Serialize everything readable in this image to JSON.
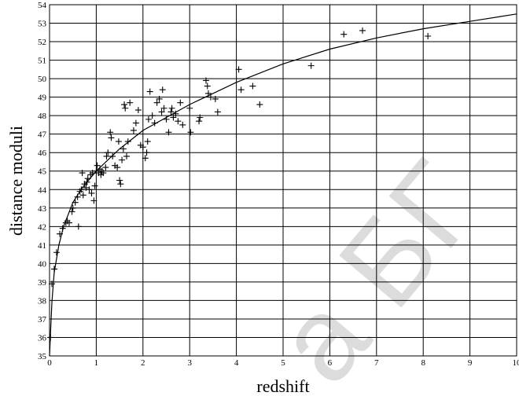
{
  "chart_data": {
    "type": "scatter",
    "xlabel": "redshift",
    "ylabel": "distance moduli",
    "xlim": [
      0,
      10
    ],
    "ylim": [
      35,
      54
    ],
    "x_ticks": [
      "0",
      "1",
      "2",
      "3",
      "4",
      "5",
      "6",
      "7",
      "8",
      "9",
      "10"
    ],
    "y_ticks": [
      "35",
      "36",
      "37",
      "38",
      "39",
      "40",
      "41",
      "42",
      "43",
      "44",
      "45",
      "46",
      "47",
      "48",
      "49",
      "50",
      "51",
      "52",
      "53",
      "54"
    ],
    "grid": true,
    "marker": "plus",
    "series": [
      {
        "kind": "points",
        "points": [
          [
            0.02,
            36.0
          ],
          [
            0.05,
            38.9
          ],
          [
            0.1,
            39.7
          ],
          [
            0.15,
            40.6
          ],
          [
            0.22,
            41.6
          ],
          [
            0.28,
            41.9
          ],
          [
            0.35,
            42.2
          ],
          [
            0.38,
            42.3
          ],
          [
            0.42,
            42.2
          ],
          [
            0.48,
            42.8
          ],
          [
            0.5,
            43.0
          ],
          [
            0.55,
            43.3
          ],
          [
            0.6,
            43.6
          ],
          [
            0.62,
            42.0
          ],
          [
            0.65,
            43.9
          ],
          [
            0.68,
            44.0
          ],
          [
            0.7,
            44.9
          ],
          [
            0.72,
            43.7
          ],
          [
            0.75,
            44.3
          ],
          [
            0.78,
            44.1
          ],
          [
            0.8,
            44.4
          ],
          [
            0.82,
            44.6
          ],
          [
            0.85,
            44.0
          ],
          [
            0.88,
            44.8
          ],
          [
            0.9,
            43.8
          ],
          [
            0.92,
            44.9
          ],
          [
            0.95,
            43.4
          ],
          [
            0.97,
            44.2
          ],
          [
            1.0,
            45.0
          ],
          [
            1.02,
            45.3
          ],
          [
            1.05,
            44.9
          ],
          [
            1.08,
            45.1
          ],
          [
            1.1,
            44.8
          ],
          [
            1.12,
            45.0
          ],
          [
            1.15,
            44.9
          ],
          [
            1.2,
            45.2
          ],
          [
            1.22,
            45.8
          ],
          [
            1.25,
            46.0
          ],
          [
            1.3,
            47.1
          ],
          [
            1.32,
            46.8
          ],
          [
            1.35,
            45.8
          ],
          [
            1.4,
            45.3
          ],
          [
            1.45,
            45.2
          ],
          [
            1.48,
            46.6
          ],
          [
            1.5,
            44.5
          ],
          [
            1.52,
            44.3
          ],
          [
            1.55,
            45.6
          ],
          [
            1.58,
            46.2
          ],
          [
            1.6,
            48.6
          ],
          [
            1.62,
            48.4
          ],
          [
            1.65,
            45.8
          ],
          [
            1.68,
            46.6
          ],
          [
            1.72,
            48.7
          ],
          [
            1.8,
            47.2
          ],
          [
            1.85,
            47.6
          ],
          [
            1.9,
            48.3
          ],
          [
            1.95,
            46.4
          ],
          [
            2.0,
            46.3
          ],
          [
            2.05,
            45.7
          ],
          [
            2.08,
            46.0
          ],
          [
            2.1,
            46.6
          ],
          [
            2.12,
            47.8
          ],
          [
            2.15,
            49.3
          ],
          [
            2.2,
            48.0
          ],
          [
            2.25,
            47.6
          ],
          [
            2.3,
            48.7
          ],
          [
            2.35,
            48.9
          ],
          [
            2.4,
            48.2
          ],
          [
            2.42,
            49.4
          ],
          [
            2.45,
            48.4
          ],
          [
            2.5,
            47.8
          ],
          [
            2.55,
            47.1
          ],
          [
            2.6,
            48.2
          ],
          [
            2.62,
            48.4
          ],
          [
            2.65,
            47.9
          ],
          [
            2.7,
            48.1
          ],
          [
            2.75,
            47.7
          ],
          [
            2.8,
            48.7
          ],
          [
            2.85,
            47.5
          ],
          [
            3.0,
            48.4
          ],
          [
            3.02,
            47.1
          ],
          [
            3.2,
            47.7
          ],
          [
            3.22,
            47.9
          ],
          [
            3.35,
            49.9
          ],
          [
            3.38,
            49.6
          ],
          [
            3.4,
            49.2
          ],
          [
            3.45,
            49.0
          ],
          [
            3.55,
            48.9
          ],
          [
            3.6,
            48.2
          ],
          [
            4.05,
            50.5
          ],
          [
            4.1,
            49.4
          ],
          [
            4.35,
            49.6
          ],
          [
            4.5,
            48.6
          ],
          [
            5.6,
            50.7
          ],
          [
            6.3,
            52.4
          ],
          [
            6.7,
            52.6
          ],
          [
            8.1,
            52.3
          ]
        ]
      },
      {
        "kind": "fit-curve",
        "points": [
          [
            0.0,
            35.0
          ],
          [
            0.02,
            36.2
          ],
          [
            0.05,
            37.9
          ],
          [
            0.1,
            39.5
          ],
          [
            0.2,
            41.0
          ],
          [
            0.3,
            42.0
          ],
          [
            0.5,
            43.3
          ],
          [
            0.7,
            44.1
          ],
          [
            1.0,
            45.0
          ],
          [
            1.5,
            46.2
          ],
          [
            2.0,
            47.2
          ],
          [
            2.5,
            47.9
          ],
          [
            3.0,
            48.6
          ],
          [
            3.5,
            49.2
          ],
          [
            4.0,
            49.8
          ],
          [
            5.0,
            50.8
          ],
          [
            6.0,
            51.6
          ],
          [
            7.0,
            52.2
          ],
          [
            8.0,
            52.7
          ],
          [
            9.0,
            53.1
          ],
          [
            10.0,
            53.5
          ]
        ]
      }
    ]
  },
  "watermark": {
    "text": "а БГ",
    "color": "#dcdcdc"
  }
}
